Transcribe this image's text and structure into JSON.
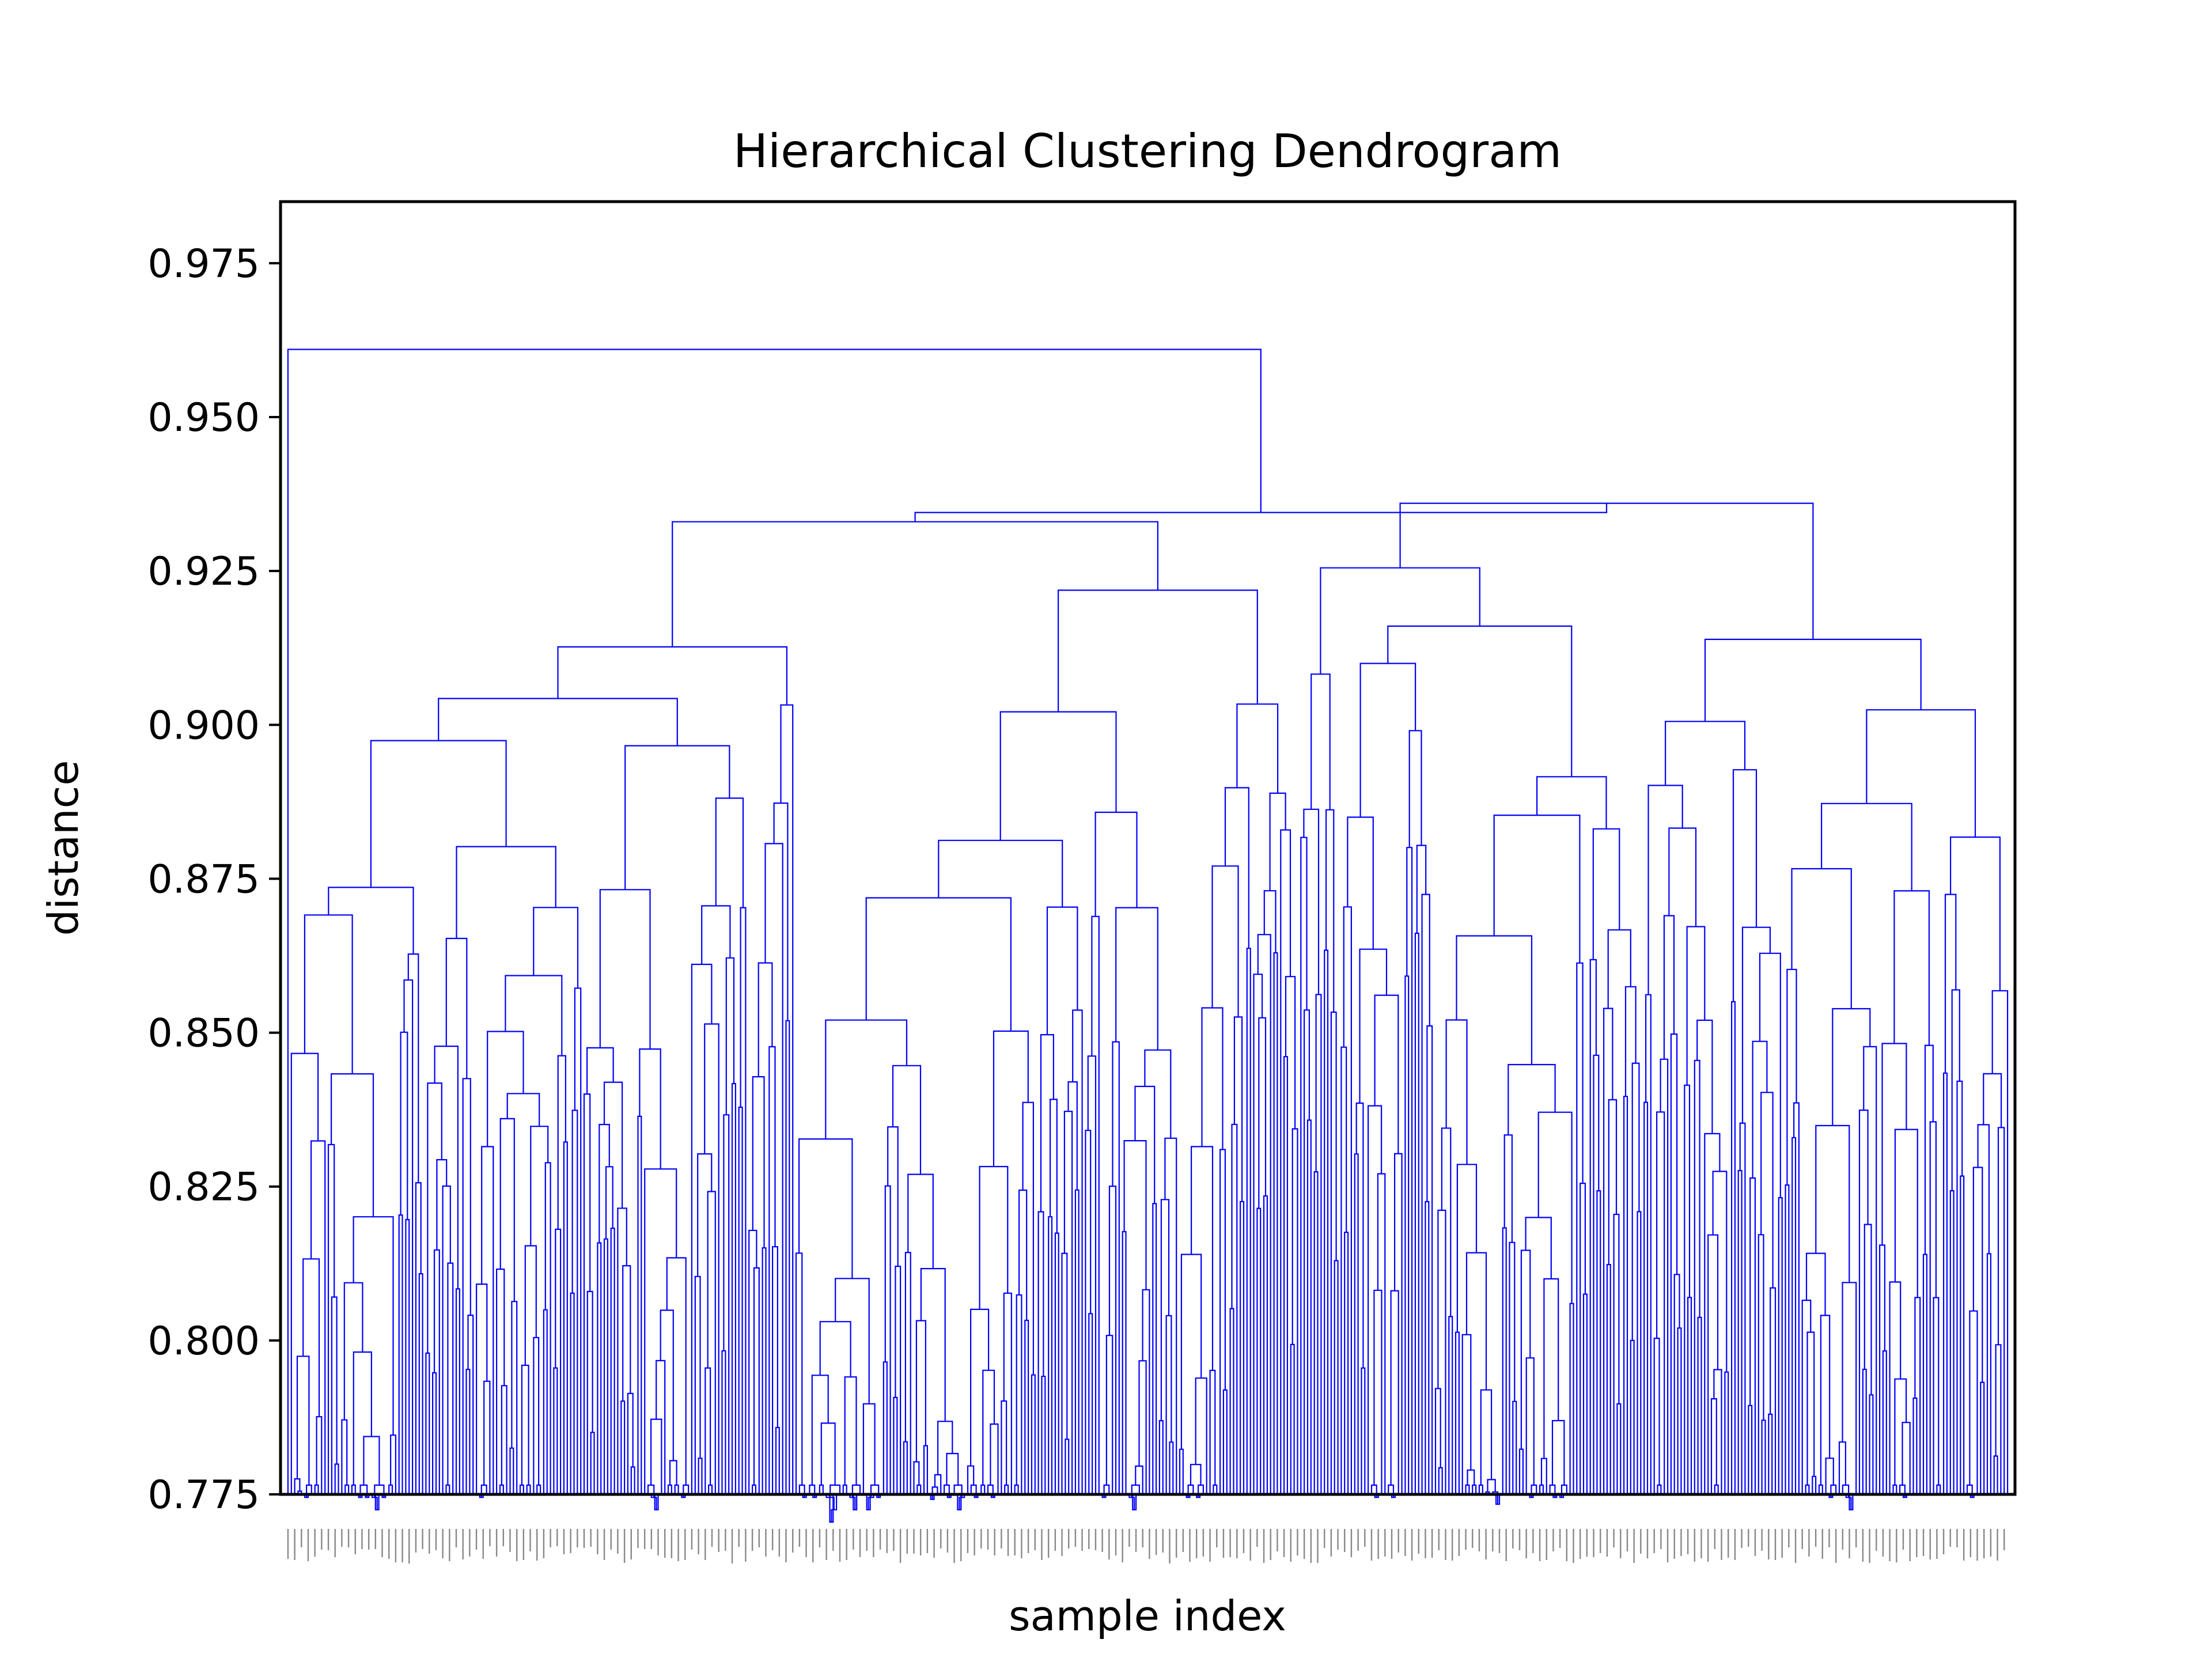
{
  "chart_data": {
    "type": "dendrogram",
    "title": "Hierarchical Clustering Dendrogram",
    "xlabel": "sample index",
    "ylabel": "distance",
    "ylim": [
      0.775,
      0.985
    ],
    "yticks": [
      "0.775",
      "0.800",
      "0.825",
      "0.850",
      "0.875",
      "0.900",
      "0.925",
      "0.950",
      "0.975"
    ],
    "ytick_values": [
      0.775,
      0.8,
      0.825,
      0.85,
      0.875,
      0.9,
      0.925,
      0.95,
      0.975
    ],
    "grid": false,
    "link_color": "#0000ff",
    "leaf_label_color": "#888888",
    "top_merges": [
      {
        "height": 0.961,
        "note": "root"
      },
      {
        "height": 0.936
      },
      {
        "height": 0.934
      },
      {
        "height": 0.933
      },
      {
        "height": 0.931
      },
      {
        "height": 0.928
      },
      {
        "height": 0.925
      },
      {
        "height": 0.922
      },
      {
        "height": 0.921
      },
      {
        "height": 0.916
      },
      {
        "height": 0.915
      },
      {
        "height": 0.913
      },
      {
        "height": 0.911
      },
      {
        "height": 0.909
      },
      {
        "height": 0.906
      }
    ]
  }
}
